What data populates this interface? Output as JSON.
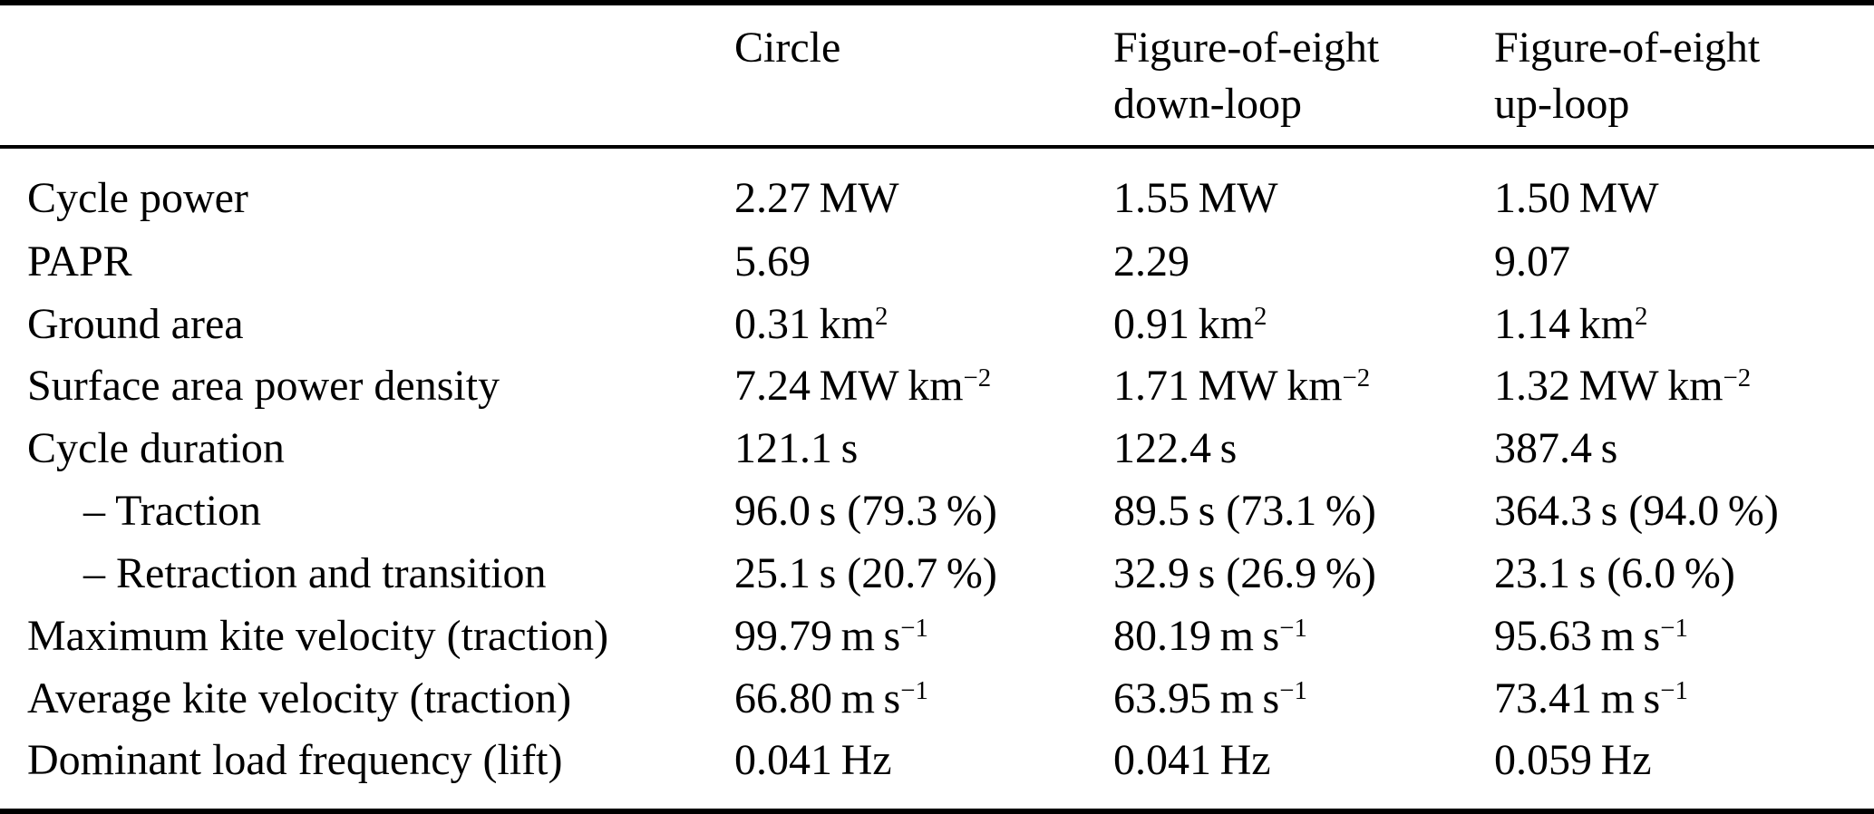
{
  "table": {
    "columns": [
      {
        "id": "metric",
        "lines": [
          ""
        ]
      },
      {
        "id": "circle",
        "lines": [
          "Circle"
        ]
      },
      {
        "id": "fig8-down",
        "lines": [
          "Figure-of-eight",
          "down-loop"
        ]
      },
      {
        "id": "fig8-up",
        "lines": [
          "Figure-of-eight",
          "up-loop"
        ]
      }
    ],
    "rows": [
      {
        "label": "Cycle power",
        "indent": false,
        "values": [
          "2.27 MW",
          "1.55 MW",
          "1.50 MW"
        ]
      },
      {
        "label": "PAPR",
        "indent": false,
        "values": [
          "5.69",
          "2.29",
          "9.07"
        ]
      },
      {
        "label": "Ground area",
        "indent": false,
        "values": [
          "0.31 km^{2}",
          "0.91 km^{2}",
          "1.14 km^{2}"
        ]
      },
      {
        "label": "Surface area power density",
        "indent": false,
        "values": [
          "7.24 MW km^{−2}",
          "1.71 MW km^{−2}",
          "1.32 MW km^{−2}"
        ]
      },
      {
        "label": "Cycle duration",
        "indent": false,
        "values": [
          "121.1 s",
          "122.4 s",
          "387.4 s"
        ]
      },
      {
        "label": "– Traction",
        "indent": true,
        "values": [
          "96.0 s (79.3 %)",
          "89.5 s (73.1 %)",
          "364.3 s (94.0 %)"
        ]
      },
      {
        "label": "– Retraction and transition",
        "indent": true,
        "values": [
          "25.1 s (20.7 %)",
          "32.9 s (26.9 %)",
          "23.1 s (6.0 %)"
        ]
      },
      {
        "label": "Maximum kite velocity (traction)",
        "indent": false,
        "values": [
          "99.79 m s^{−1}",
          "80.19 m s^{−1}",
          "95.63 m s^{−1}"
        ]
      },
      {
        "label": "Average kite velocity (traction)",
        "indent": false,
        "values": [
          "66.80 m s^{−1}",
          "63.95 m s^{−1}",
          "73.41 m s^{−1}"
        ]
      },
      {
        "label": "Dominant load frequency (lift)",
        "indent": false,
        "values": [
          "0.041 Hz",
          "0.041 Hz",
          "0.059 Hz"
        ]
      }
    ],
    "colors": {
      "text": "#000000",
      "background": "#ffffff",
      "rule": "#000000"
    }
  }
}
